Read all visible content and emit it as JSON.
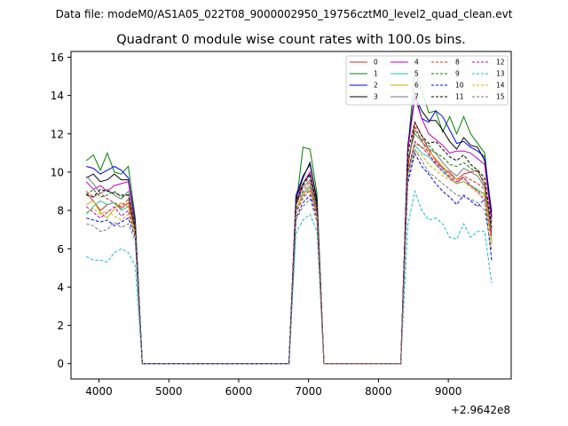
{
  "chart_data": {
    "type": "line",
    "suptitle": "Data file: modeM0/AS1A05_022T08_9000002950_19756cztM0_level2_quad_clean.evt",
    "title": "Quadrant 0 module wise count rates with 100.0s bins.",
    "xlabel": "",
    "ylabel": "",
    "x_offset_label": "+2.9642e8",
    "xlim": [
      3600,
      9900
    ],
    "ylim": [
      -0.8,
      16.3
    ],
    "x_ticks": [
      4000,
      5000,
      6000,
      7000,
      8000,
      9000
    ],
    "x_tick_labels": [
      "4000",
      "5000",
      "6000",
      "7000",
      "8000",
      "9000"
    ],
    "y_ticks": [
      0,
      2,
      4,
      6,
      8,
      10,
      12,
      14,
      16
    ],
    "y_tick_labels": [
      "0",
      "2",
      "4",
      "6",
      "8",
      "10",
      "12",
      "14",
      "16"
    ],
    "legend": {
      "placement": "top-right",
      "entries": [
        "0",
        "1",
        "2",
        "3",
        "4",
        "5",
        "6",
        "7",
        "8",
        "9",
        "10",
        "11",
        "12",
        "13",
        "14",
        "15"
      ]
    },
    "x": [
      3820,
      3920,
      4020,
      4120,
      4220,
      4320,
      4420,
      4520,
      4620,
      4720,
      4820,
      4920,
      5020,
      5120,
      5220,
      5320,
      5420,
      5520,
      5620,
      5720,
      5820,
      5920,
      6020,
      6120,
      6220,
      6320,
      6420,
      6520,
      6620,
      6720,
      6820,
      6920,
      7020,
      7120,
      7220,
      7320,
      7420,
      7520,
      7620,
      7720,
      7820,
      7920,
      8020,
      8120,
      8220,
      8320,
      8420,
      8520,
      8620,
      8720,
      8820,
      8920,
      9020,
      9120,
      9220,
      9320,
      9420,
      9520,
      9620
    ],
    "series": [
      {
        "name": "0",
        "color": "#d62728",
        "dash": "solid",
        "values": [
          8.9,
          8.5,
          8.0,
          8.3,
          8.4,
          8.1,
          8.4,
          7.0,
          0,
          0,
          0,
          0,
          0,
          0,
          0,
          0,
          0,
          0,
          0,
          0,
          0,
          0,
          0,
          0,
          0,
          0,
          0,
          0,
          0,
          0,
          8.7,
          9.4,
          9.9,
          8.3,
          0,
          0,
          0,
          0,
          0,
          0,
          0,
          0,
          0,
          0,
          0,
          0,
          10.2,
          12.6,
          11.9,
          11.2,
          10.6,
          10.2,
          10.0,
          9.6,
          9.9,
          10.0,
          10.1,
          9.3,
          6.8
        ]
      },
      {
        "name": "1",
        "color": "#008000",
        "dash": "solid",
        "values": [
          10.6,
          10.9,
          10.1,
          11.0,
          10.0,
          9.9,
          10.3,
          7.6,
          0,
          0,
          0,
          0,
          0,
          0,
          0,
          0,
          0,
          0,
          0,
          0,
          0,
          0,
          0,
          0,
          0,
          0,
          0,
          0,
          0,
          0,
          8.2,
          11.3,
          11.2,
          8.9,
          0,
          0,
          0,
          0,
          0,
          0,
          0,
          0,
          0,
          0,
          0,
          0,
          11.2,
          15.3,
          14.3,
          13.1,
          13.2,
          12.1,
          12.9,
          12.0,
          12.9,
          12.0,
          11.5,
          11.0,
          7.6
        ]
      },
      {
        "name": "2",
        "color": "#0000ff",
        "dash": "solid",
        "values": [
          10.3,
          10.2,
          9.9,
          10.1,
          10.3,
          10.1,
          9.7,
          7.4,
          0,
          0,
          0,
          0,
          0,
          0,
          0,
          0,
          0,
          0,
          0,
          0,
          0,
          0,
          0,
          0,
          0,
          0,
          0,
          0,
          0,
          0,
          8.8,
          9.8,
          10.4,
          8.6,
          0,
          0,
          0,
          0,
          0,
          0,
          0,
          0,
          0,
          0,
          0,
          0,
          11.4,
          14.1,
          12.8,
          12.6,
          13.2,
          12.9,
          12.2,
          11.5,
          11.6,
          11.3,
          11.1,
          10.8,
          7.9
        ]
      },
      {
        "name": "3",
        "color": "#000000",
        "dash": "solid",
        "values": [
          9.7,
          9.9,
          9.5,
          9.6,
          9.9,
          9.6,
          9.6,
          7.3,
          0,
          0,
          0,
          0,
          0,
          0,
          0,
          0,
          0,
          0,
          0,
          0,
          0,
          0,
          0,
          0,
          0,
          0,
          0,
          0,
          0,
          0,
          8.6,
          9.7,
          10.5,
          8.5,
          0,
          0,
          0,
          0,
          0,
          0,
          0,
          0,
          0,
          0,
          0,
          0,
          11.3,
          14.0,
          13.2,
          12.7,
          12.7,
          12.2,
          11.6,
          11.2,
          11.8,
          11.4,
          11.3,
          10.6,
          7.7
        ]
      },
      {
        "name": "4",
        "color": "#bf00bf",
        "dash": "solid",
        "values": [
          9.5,
          9.1,
          9.3,
          9.0,
          9.3,
          9.4,
          9.5,
          7.2,
          0,
          0,
          0,
          0,
          0,
          0,
          0,
          0,
          0,
          0,
          0,
          0,
          0,
          0,
          0,
          0,
          0,
          0,
          0,
          0,
          0,
          0,
          8.4,
          9.4,
          10.0,
          8.3,
          0,
          0,
          0,
          0,
          0,
          0,
          0,
          0,
          0,
          0,
          0,
          0,
          11.1,
          13.9,
          12.8,
          12.0,
          11.7,
          11.4,
          11.0,
          11.1,
          11.1,
          11.0,
          10.7,
          10.4,
          7.4
        ]
      },
      {
        "name": "5",
        "color": "#20c0a0",
        "dash": "solid",
        "values": [
          7.8,
          8.2,
          8.5,
          8.3,
          8.4,
          8.0,
          8.2,
          6.9,
          0,
          0,
          0,
          0,
          0,
          0,
          0,
          0,
          0,
          0,
          0,
          0,
          0,
          0,
          0,
          0,
          0,
          0,
          0,
          0,
          0,
          0,
          8.0,
          8.9,
          9.3,
          7.9,
          0,
          0,
          0,
          0,
          0,
          0,
          0,
          0,
          0,
          0,
          0,
          0,
          9.9,
          11.4,
          11.0,
          10.8,
          10.4,
          10.1,
          9.7,
          9.4,
          9.5,
          9.3,
          9.1,
          8.8,
          6.4
        ]
      },
      {
        "name": "6",
        "color": "#c8a800",
        "dash": "solid",
        "values": [
          8.3,
          8.5,
          7.9,
          7.6,
          8.1,
          8.4,
          8.2,
          6.8,
          0,
          0,
          0,
          0,
          0,
          0,
          0,
          0,
          0,
          0,
          0,
          0,
          0,
          0,
          0,
          0,
          0,
          0,
          0,
          0,
          0,
          0,
          8.1,
          8.8,
          9.2,
          7.8,
          0,
          0,
          0,
          0,
          0,
          0,
          0,
          0,
          0,
          0,
          0,
          0,
          10.0,
          11.5,
          11.3,
          11.1,
          10.7,
          10.3,
          9.9,
          9.6,
          9.7,
          9.3,
          9.0,
          8.9,
          6.3
        ]
      },
      {
        "name": "7",
        "color": "#777777",
        "dash": "solid",
        "values": [
          9.8,
          9.4,
          8.9,
          9.1,
          8.8,
          8.6,
          9.0,
          7.1,
          0,
          0,
          0,
          0,
          0,
          0,
          0,
          0,
          0,
          0,
          0,
          0,
          0,
          0,
          0,
          0,
          0,
          0,
          0,
          0,
          0,
          0,
          8.3,
          9.2,
          9.6,
          8.1,
          0,
          0,
          0,
          0,
          0,
          0,
          0,
          0,
          0,
          0,
          0,
          0,
          10.7,
          12.0,
          11.6,
          11.2,
          11.0,
          10.5,
          10.1,
          9.8,
          10.2,
          10.0,
          9.8,
          9.2,
          6.9
        ]
      },
      {
        "name": "8",
        "color": "#d62728",
        "dash": "dashed",
        "values": [
          9.0,
          8.7,
          8.9,
          8.6,
          8.4,
          8.2,
          8.6,
          7.0,
          0,
          0,
          0,
          0,
          0,
          0,
          0,
          0,
          0,
          0,
          0,
          0,
          0,
          0,
          0,
          0,
          0,
          0,
          0,
          0,
          0,
          0,
          8.3,
          9.0,
          9.5,
          8.0,
          0,
          0,
          0,
          0,
          0,
          0,
          0,
          0,
          0,
          0,
          0,
          0,
          10.4,
          12.4,
          11.6,
          11.0,
          10.4,
          10.0,
          9.7,
          9.4,
          9.8,
          9.6,
          9.4,
          9.1,
          6.8
        ]
      },
      {
        "name": "9",
        "color": "#008000",
        "dash": "dashed",
        "values": [
          8.8,
          9.1,
          8.7,
          8.8,
          9.0,
          8.7,
          8.8,
          7.1,
          0,
          0,
          0,
          0,
          0,
          0,
          0,
          0,
          0,
          0,
          0,
          0,
          0,
          0,
          0,
          0,
          0,
          0,
          0,
          0,
          0,
          0,
          8.4,
          9.3,
          9.8,
          8.2,
          0,
          0,
          0,
          0,
          0,
          0,
          0,
          0,
          0,
          0,
          0,
          0,
          10.6,
          12.2,
          11.7,
          11.4,
          11.0,
          10.8,
          10.4,
          10.3,
          10.5,
          10.2,
          10.0,
          9.5,
          7.0
        ]
      },
      {
        "name": "10",
        "color": "#0000ff",
        "dash": "dashed",
        "values": [
          7.6,
          7.5,
          7.4,
          7.5,
          7.2,
          7.4,
          7.6,
          6.6,
          0,
          0,
          0,
          0,
          0,
          0,
          0,
          0,
          0,
          0,
          0,
          0,
          0,
          0,
          0,
          0,
          0,
          0,
          0,
          0,
          0,
          0,
          7.6,
          8.4,
          8.8,
          7.6,
          0,
          0,
          0,
          0,
          0,
          0,
          0,
          0,
          0,
          0,
          0,
          0,
          9.4,
          11.0,
          10.3,
          9.9,
          9.4,
          9.0,
          8.7,
          8.3,
          8.8,
          8.5,
          8.2,
          8.6,
          5.4
        ]
      },
      {
        "name": "11",
        "color": "#000000",
        "dash": "dashed",
        "values": [
          8.8,
          8.7,
          9.1,
          9.0,
          8.9,
          8.8,
          8.8,
          7.0,
          0,
          0,
          0,
          0,
          0,
          0,
          0,
          0,
          0,
          0,
          0,
          0,
          0,
          0,
          0,
          0,
          0,
          0,
          0,
          0,
          0,
          0,
          8.3,
          9.4,
          9.9,
          8.3,
          0,
          0,
          0,
          0,
          0,
          0,
          0,
          0,
          0,
          0,
          0,
          0,
          11.0,
          12.6,
          11.9,
          11.5,
          11.6,
          11.2,
          10.8,
          10.6,
          10.9,
          10.4,
          10.1,
          9.7,
          7.1
        ]
      },
      {
        "name": "12",
        "color": "#bf00bf",
        "dash": "dashed",
        "values": [
          8.2,
          7.9,
          7.6,
          7.9,
          8.2,
          7.7,
          8.0,
          6.7,
          0,
          0,
          0,
          0,
          0,
          0,
          0,
          0,
          0,
          0,
          0,
          0,
          0,
          0,
          0,
          0,
          0,
          0,
          0,
          0,
          0,
          0,
          7.9,
          8.7,
          9.1,
          7.8,
          0,
          0,
          0,
          0,
          0,
          0,
          0,
          0,
          0,
          0,
          0,
          0,
          10.0,
          11.6,
          11.3,
          10.9,
          10.5,
          10.2,
          9.8,
          9.5,
          9.7,
          9.3,
          9.0,
          8.5,
          6.6
        ]
      },
      {
        "name": "13",
        "color": "#17becf",
        "dash": "dashed",
        "values": [
          5.6,
          5.4,
          5.4,
          5.3,
          5.8,
          6.0,
          5.8,
          5.1,
          0,
          0,
          0,
          0,
          0,
          0,
          0,
          0,
          0,
          0,
          0,
          0,
          0,
          0,
          0,
          0,
          0,
          0,
          0,
          0,
          0,
          0,
          6.8,
          7.5,
          7.8,
          6.9,
          0,
          0,
          0,
          0,
          0,
          0,
          0,
          0,
          0,
          0,
          0,
          0,
          7.2,
          9.0,
          8.0,
          7.5,
          7.6,
          7.3,
          6.6,
          6.5,
          7.3,
          6.6,
          6.9,
          6.9,
          4.2
        ]
      },
      {
        "name": "14",
        "color": "#c8b400",
        "dash": "dashed",
        "values": [
          7.9,
          8.1,
          7.8,
          8.0,
          7.7,
          7.5,
          7.8,
          6.7,
          0,
          0,
          0,
          0,
          0,
          0,
          0,
          0,
          0,
          0,
          0,
          0,
          0,
          0,
          0,
          0,
          0,
          0,
          0,
          0,
          0,
          0,
          7.8,
          8.6,
          9.0,
          7.7,
          0,
          0,
          0,
          0,
          0,
          0,
          0,
          0,
          0,
          0,
          0,
          0,
          9.7,
          11.1,
          10.9,
          10.4,
          10.1,
          9.8,
          9.6,
          9.4,
          9.5,
          9.2,
          8.9,
          8.7,
          6.2
        ]
      },
      {
        "name": "15",
        "color": "#777777",
        "dash": "dashed",
        "values": [
          7.3,
          7.2,
          6.9,
          7.0,
          7.4,
          7.1,
          7.3,
          6.4,
          0,
          0,
          0,
          0,
          0,
          0,
          0,
          0,
          0,
          0,
          0,
          0,
          0,
          0,
          0,
          0,
          0,
          0,
          0,
          0,
          0,
          0,
          7.5,
          8.2,
          8.6,
          7.4,
          0,
          0,
          0,
          0,
          0,
          0,
          0,
          0,
          0,
          0,
          0,
          0,
          9.6,
          11.2,
          10.6,
          10.0,
          9.7,
          9.4,
          9.1,
          8.8,
          8.7,
          8.6,
          8.4,
          8.0,
          5.9
        ]
      }
    ]
  }
}
